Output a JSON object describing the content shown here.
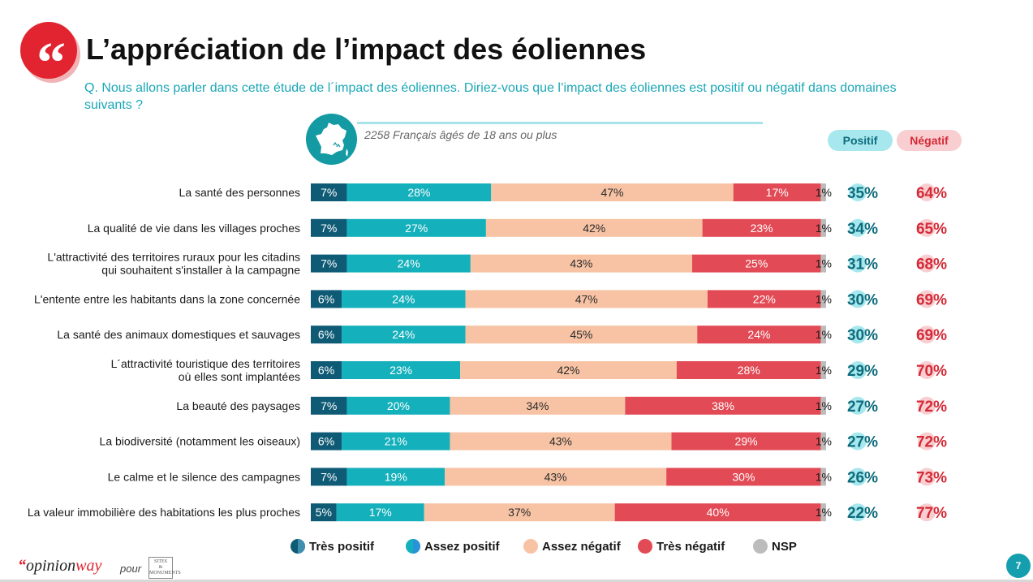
{
  "header": {
    "quote_glyph": "“",
    "title": "L’appréciation de l’impact des éoliennes",
    "question": "Q. Nous allons parler dans cette étude de l´impact des éoliennes. Diriez-vous que l’impact des éoliennes est positif ou négatif dans domaines suivants ?",
    "sample": "2258 Français âgés de 18 ans ou plus"
  },
  "pills": {
    "positive": "Positif",
    "negative": "Négatif"
  },
  "colors": {
    "tres_positif": "#0f5b75",
    "assez_positif": "#14b0bb",
    "assez_negatif": "#f7c3a4",
    "tres_negatif": "#e24b56",
    "nsp": "#bcbcbc",
    "positive_text": "#0e6c7c",
    "negative_text": "#d42a36"
  },
  "chart_data": {
    "type": "bar",
    "orientation": "horizontal-stacked-100",
    "series_names": [
      "Très positif",
      "Assez positif",
      "Assez négatif",
      "Très négatif",
      "NSP"
    ],
    "categories": [
      [
        "La santé des personnes"
      ],
      [
        "La qualité de vie dans les villages proches"
      ],
      [
        "L'attractivité des territoires ruraux pour les citadins",
        "qui souhaitent s'installer à la campagne"
      ],
      [
        "L'entente entre les habitants dans la zone concernée"
      ],
      [
        "La santé des animaux domestiques et sauvages"
      ],
      [
        "L´attractivité touristique des territoires",
        "où elles sont implantées"
      ],
      [
        "La beauté des paysages"
      ],
      [
        "La biodiversité (notamment les oiseaux)"
      ],
      [
        "Le calme et le silence des campagnes"
      ],
      [
        "La valeur immobilière des habitations les plus proches"
      ]
    ],
    "series": [
      {
        "name": "Très positif",
        "values": [
          7,
          7,
          7,
          6,
          6,
          6,
          7,
          6,
          7,
          5
        ]
      },
      {
        "name": "Assez positif",
        "values": [
          28,
          27,
          24,
          24,
          24,
          23,
          20,
          21,
          19,
          17
        ]
      },
      {
        "name": "Assez négatif",
        "values": [
          47,
          42,
          43,
          47,
          45,
          42,
          34,
          43,
          43,
          37
        ]
      },
      {
        "name": "Très négatif",
        "values": [
          17,
          23,
          25,
          22,
          24,
          28,
          38,
          29,
          30,
          40
        ]
      },
      {
        "name": "NSP",
        "values": [
          1,
          1,
          1,
          1,
          1,
          1,
          1,
          1,
          1,
          1
        ]
      }
    ],
    "totals_positif": [
      "35%",
      "34%",
      "31%",
      "30%",
      "30%",
      "29%",
      "27%",
      "27%",
      "26%",
      "22%"
    ],
    "totals_negatif": [
      "64%",
      "65%",
      "68%",
      "69%",
      "69%",
      "70%",
      "72%",
      "72%",
      "73%",
      "77%"
    ],
    "value_suffix": "%",
    "xlim": [
      0,
      100
    ]
  },
  "footer": {
    "brand_quote": "“",
    "brand_opinion": "opinion",
    "brand_way": "way",
    "pour": "pour",
    "partner_line1": "SITES",
    "partner_line2": "&",
    "partner_line3": "MONUMENTS",
    "page_number": "7"
  }
}
